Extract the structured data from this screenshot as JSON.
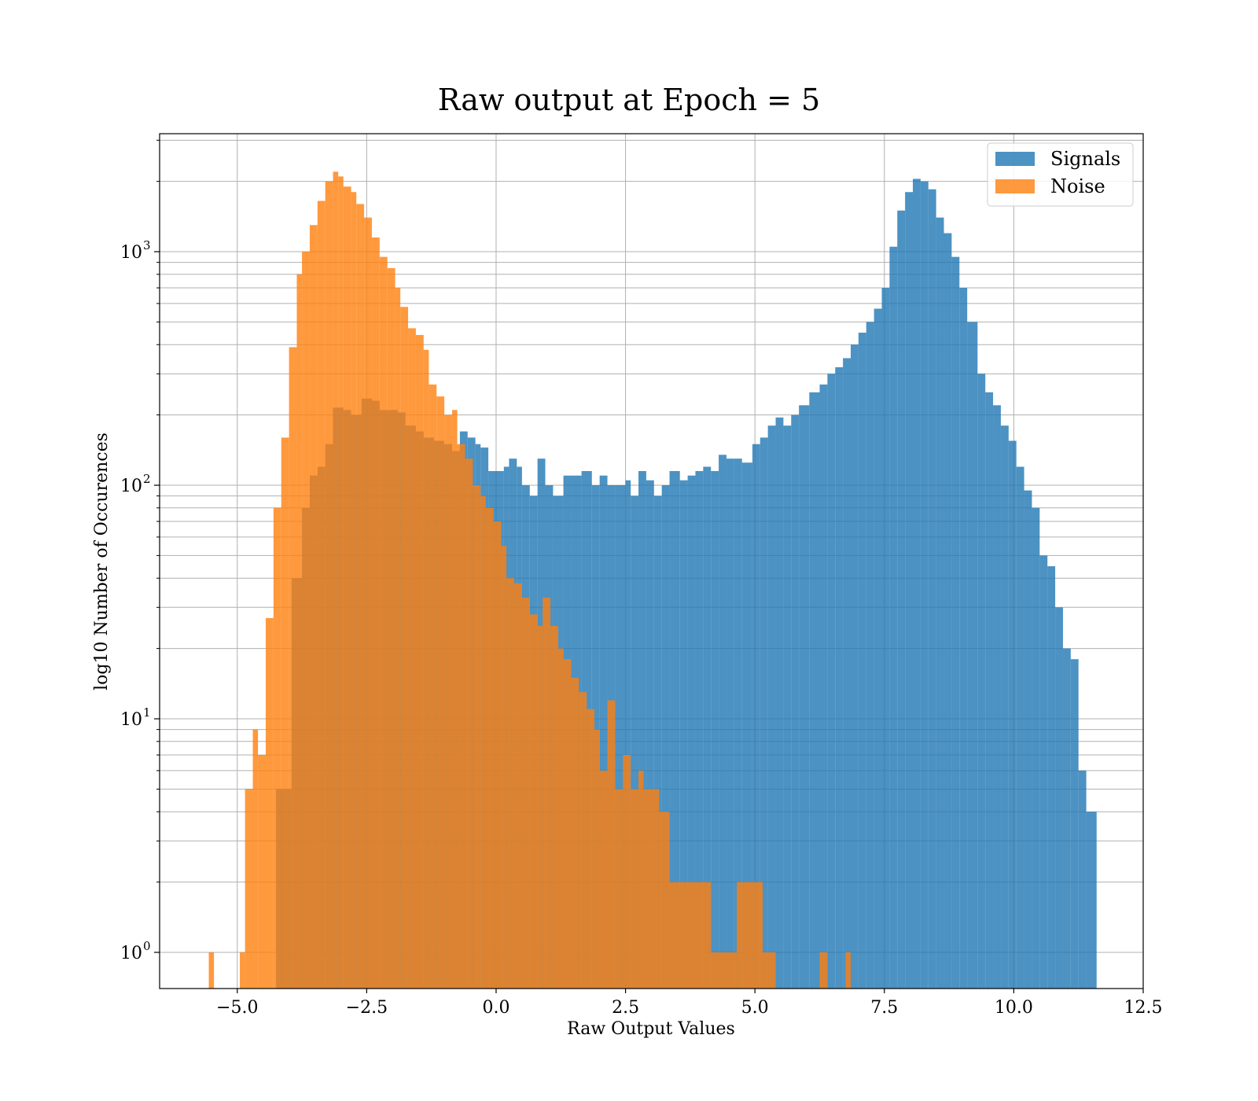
{
  "chart_data": {
    "type": "histogram",
    "title": "Raw output at Epoch = 5",
    "xlabel": "Raw Output Values",
    "ylabel": "log10 Number of Occurences",
    "yscale": "log",
    "xlim": [
      -6.5,
      12.5
    ],
    "ylim": [
      0.7,
      3200
    ],
    "grid": true,
    "legend": "top-right",
    "x_ticks": [
      {
        "value": -5.0,
        "label": "−5.0"
      },
      {
        "value": -2.5,
        "label": "−2.5"
      },
      {
        "value": 0.0,
        "label": "0.0"
      },
      {
        "value": 2.5,
        "label": "2.5"
      },
      {
        "value": 5.0,
        "label": "5.0"
      },
      {
        "value": 7.5,
        "label": "7.5"
      },
      {
        "value": 10.0,
        "label": "10.0"
      },
      {
        "value": 12.5,
        "label": "12.5"
      }
    ],
    "y_ticks": [
      {
        "value": 1,
        "base": "10",
        "exp": "0"
      },
      {
        "value": 10,
        "base": "10",
        "exp": "1"
      },
      {
        "value": 100,
        "base": "10",
        "exp": "2"
      },
      {
        "value": 1000,
        "base": "10",
        "exp": "3"
      }
    ],
    "series": [
      {
        "name": "Signals",
        "color": "#1f77b4",
        "bins": [
          [
            -4.25,
            -3.95,
            5
          ],
          [
            -3.95,
            -3.75,
            40
          ],
          [
            -3.75,
            -3.6,
            80
          ],
          [
            -3.6,
            -3.45,
            110
          ],
          [
            -3.45,
            -3.3,
            120
          ],
          [
            -3.3,
            -3.15,
            150
          ],
          [
            -3.15,
            -2.95,
            215
          ],
          [
            -2.95,
            -2.8,
            210
          ],
          [
            -2.8,
            -2.6,
            200
          ],
          [
            -2.6,
            -2.4,
            235
          ],
          [
            -2.4,
            -2.25,
            230
          ],
          [
            -2.25,
            -2.1,
            210
          ],
          [
            -2.1,
            -1.9,
            210
          ],
          [
            -1.9,
            -1.75,
            205
          ],
          [
            -1.75,
            -1.55,
            180
          ],
          [
            -1.55,
            -1.4,
            170
          ],
          [
            -1.4,
            -1.2,
            160
          ],
          [
            -1.2,
            -1.0,
            155
          ],
          [
            -1.0,
            -0.85,
            150
          ],
          [
            -0.85,
            -0.7,
            140
          ],
          [
            -0.7,
            -0.55,
            170
          ],
          [
            -0.55,
            -0.4,
            160
          ],
          [
            -0.4,
            -0.3,
            150
          ],
          [
            -0.3,
            -0.15,
            145
          ],
          [
            -0.15,
            0.15,
            115
          ],
          [
            0.15,
            0.25,
            120
          ],
          [
            0.25,
            0.4,
            130
          ],
          [
            0.4,
            0.5,
            120
          ],
          [
            0.5,
            0.65,
            100
          ],
          [
            0.65,
            0.8,
            90
          ],
          [
            0.8,
            0.95,
            130
          ],
          [
            0.95,
            1.1,
            100
          ],
          [
            1.1,
            1.3,
            90
          ],
          [
            1.3,
            1.45,
            110
          ],
          [
            1.45,
            1.65,
            110
          ],
          [
            1.65,
            1.85,
            115
          ],
          [
            1.85,
            2.0,
            100
          ],
          [
            2.0,
            2.15,
            110
          ],
          [
            2.15,
            2.3,
            100
          ],
          [
            2.3,
            2.5,
            100
          ],
          [
            2.5,
            2.6,
            105
          ],
          [
            2.6,
            2.75,
            90
          ],
          [
            2.75,
            2.9,
            115
          ],
          [
            2.9,
            3.05,
            105
          ],
          [
            3.05,
            3.2,
            90
          ],
          [
            3.2,
            3.35,
            100
          ],
          [
            3.35,
            3.55,
            115
          ],
          [
            3.55,
            3.7,
            105
          ],
          [
            3.7,
            3.85,
            110
          ],
          [
            3.85,
            4.0,
            115
          ],
          [
            4.0,
            4.15,
            120
          ],
          [
            4.15,
            4.3,
            115
          ],
          [
            4.3,
            4.45,
            135
          ],
          [
            4.45,
            4.6,
            130
          ],
          [
            4.6,
            4.75,
            130
          ],
          [
            4.75,
            4.95,
            125
          ],
          [
            4.95,
            5.1,
            150
          ],
          [
            5.1,
            5.25,
            160
          ],
          [
            5.25,
            5.4,
            180
          ],
          [
            5.4,
            5.55,
            195
          ],
          [
            5.55,
            5.7,
            180
          ],
          [
            5.7,
            5.85,
            200
          ],
          [
            5.85,
            6.05,
            220
          ],
          [
            6.05,
            6.25,
            250
          ],
          [
            6.25,
            6.4,
            270
          ],
          [
            6.4,
            6.55,
            300
          ],
          [
            6.55,
            6.7,
            320
          ],
          [
            6.7,
            6.85,
            350
          ],
          [
            6.85,
            7.0,
            400
          ],
          [
            7.0,
            7.15,
            450
          ],
          [
            7.15,
            7.3,
            500
          ],
          [
            7.3,
            7.45,
            570
          ],
          [
            7.45,
            7.6,
            700
          ],
          [
            7.6,
            7.75,
            1050
          ],
          [
            7.75,
            7.9,
            1500
          ],
          [
            7.9,
            8.05,
            1800
          ],
          [
            8.05,
            8.2,
            2050
          ],
          [
            8.2,
            8.35,
            2000
          ],
          [
            8.35,
            8.5,
            1850
          ],
          [
            8.5,
            8.65,
            1400
          ],
          [
            8.65,
            8.8,
            1200
          ],
          [
            8.8,
            8.95,
            950
          ],
          [
            8.95,
            9.1,
            700
          ],
          [
            9.1,
            9.3,
            500
          ],
          [
            9.3,
            9.45,
            300
          ],
          [
            9.45,
            9.6,
            250
          ],
          [
            9.6,
            9.75,
            220
          ],
          [
            9.75,
            9.9,
            180
          ],
          [
            9.9,
            10.05,
            155
          ],
          [
            10.05,
            10.2,
            120
          ],
          [
            10.2,
            10.35,
            95
          ],
          [
            10.35,
            10.5,
            80
          ],
          [
            10.5,
            10.65,
            50
          ],
          [
            10.65,
            10.8,
            45
          ],
          [
            10.8,
            10.95,
            30
          ],
          [
            10.95,
            11.1,
            20
          ],
          [
            11.1,
            11.25,
            18
          ],
          [
            11.25,
            11.4,
            6
          ],
          [
            11.4,
            11.6,
            4
          ]
        ]
      },
      {
        "name": "Noise",
        "color": "#ff7f0e",
        "bins": [
          [
            -5.55,
            -5.45,
            1
          ],
          [
            -4.95,
            -4.85,
            1
          ],
          [
            -4.85,
            -4.7,
            5
          ],
          [
            -4.7,
            -4.6,
            9
          ],
          [
            -4.6,
            -4.45,
            7
          ],
          [
            -4.45,
            -4.3,
            27
          ],
          [
            -4.3,
            -4.15,
            80
          ],
          [
            -4.15,
            -4.0,
            160
          ],
          [
            -4.0,
            -3.85,
            390
          ],
          [
            -3.85,
            -3.75,
            800
          ],
          [
            -3.75,
            -3.6,
            1000
          ],
          [
            -3.6,
            -3.45,
            1300
          ],
          [
            -3.45,
            -3.3,
            1650
          ],
          [
            -3.3,
            -3.15,
            2000
          ],
          [
            -3.15,
            -3.05,
            2200
          ],
          [
            -3.05,
            -2.95,
            2100
          ],
          [
            -2.95,
            -2.8,
            1900
          ],
          [
            -2.8,
            -2.7,
            1800
          ],
          [
            -2.7,
            -2.55,
            1600
          ],
          [
            -2.55,
            -2.4,
            1400
          ],
          [
            -2.4,
            -2.25,
            1150
          ],
          [
            -2.25,
            -2.1,
            950
          ],
          [
            -2.1,
            -1.95,
            850
          ],
          [
            -1.95,
            -1.85,
            700
          ],
          [
            -1.85,
            -1.7,
            580
          ],
          [
            -1.7,
            -1.55,
            470
          ],
          [
            -1.55,
            -1.4,
            440
          ],
          [
            -1.4,
            -1.3,
            380
          ],
          [
            -1.3,
            -1.15,
            270
          ],
          [
            -1.15,
            -1.0,
            240
          ],
          [
            -1.0,
            -0.85,
            200
          ],
          [
            -0.85,
            -0.75,
            210
          ],
          [
            -0.75,
            -0.6,
            150
          ],
          [
            -0.6,
            -0.45,
            130
          ],
          [
            -0.45,
            -0.3,
            100
          ],
          [
            -0.3,
            -0.2,
            90
          ],
          [
            -0.2,
            -0.05,
            80
          ],
          [
            -0.05,
            0.1,
            70
          ],
          [
            0.1,
            0.2,
            55
          ],
          [
            0.2,
            0.35,
            40
          ],
          [
            0.35,
            0.5,
            38
          ],
          [
            0.5,
            0.65,
            33
          ],
          [
            0.65,
            0.8,
            28
          ],
          [
            0.8,
            0.9,
            25
          ],
          [
            0.9,
            1.05,
            33
          ],
          [
            1.05,
            1.2,
            25
          ],
          [
            1.2,
            1.3,
            20
          ],
          [
            1.3,
            1.45,
            18
          ],
          [
            1.45,
            1.6,
            15
          ],
          [
            1.6,
            1.75,
            13
          ],
          [
            1.75,
            1.9,
            11
          ],
          [
            1.9,
            2.0,
            9
          ],
          [
            2.0,
            2.15,
            6
          ],
          [
            2.15,
            2.3,
            12
          ],
          [
            2.3,
            2.45,
            5
          ],
          [
            2.45,
            2.6,
            7
          ],
          [
            2.6,
            2.75,
            5
          ],
          [
            2.75,
            2.85,
            6
          ],
          [
            2.85,
            3.0,
            5
          ],
          [
            3.0,
            3.15,
            5
          ],
          [
            3.15,
            3.35,
            4
          ],
          [
            3.35,
            3.5,
            2
          ],
          [
            3.5,
            3.65,
            2
          ],
          [
            3.65,
            3.85,
            2
          ],
          [
            3.85,
            4.0,
            2
          ],
          [
            4.0,
            4.15,
            2
          ],
          [
            4.15,
            4.45,
            1
          ],
          [
            4.45,
            4.65,
            1
          ],
          [
            4.65,
            4.75,
            2
          ],
          [
            4.75,
            4.95,
            2
          ],
          [
            4.95,
            5.15,
            2
          ],
          [
            5.15,
            5.4,
            1
          ],
          [
            6.25,
            6.4,
            1
          ],
          [
            6.75,
            6.85,
            1
          ]
        ]
      }
    ]
  }
}
